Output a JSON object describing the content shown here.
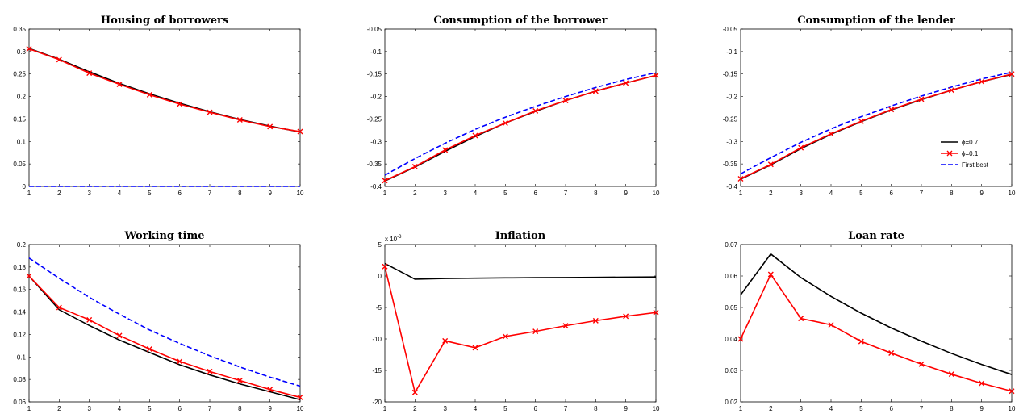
{
  "chart_data": [
    {
      "type": "line",
      "title": "Housing of borrowers",
      "x": [
        1,
        2,
        3,
        4,
        5,
        6,
        7,
        8,
        9,
        10
      ],
      "xlim": [
        1,
        10
      ],
      "ylim": [
        0,
        0.35
      ],
      "yticks": [
        0,
        0.05,
        0.1,
        0.15,
        0.2,
        0.25,
        0.3,
        0.35
      ],
      "ytick_labels": [
        "0",
        "0.05",
        "0.1",
        "0.15",
        "0.2",
        "0.25",
        "0.3",
        "0.35"
      ],
      "series": [
        {
          "name": "ϕ=0.7",
          "color": "#000000",
          "style": "solid",
          "marker": "none",
          "values": [
            0.307,
            0.283,
            0.255,
            0.229,
            0.206,
            0.185,
            0.166,
            0.149,
            0.134,
            0.121
          ]
        },
        {
          "name": "ϕ=0.1",
          "color": "#ff0000",
          "style": "solid",
          "marker": "x",
          "values": [
            0.306,
            0.282,
            0.252,
            0.227,
            0.204,
            0.183,
            0.165,
            0.148,
            0.133,
            0.122
          ]
        },
        {
          "name": "First best",
          "color": "#0000ff",
          "style": "dashed",
          "marker": "none",
          "values": [
            0,
            0,
            0,
            0,
            0,
            0,
            0,
            0,
            0,
            0
          ]
        }
      ]
    },
    {
      "type": "line",
      "title": "Consumption of the borrower",
      "x": [
        1,
        2,
        3,
        4,
        5,
        6,
        7,
        8,
        9,
        10
      ],
      "xlim": [
        1,
        10
      ],
      "ylim": [
        -0.4,
        -0.05
      ],
      "yticks": [
        -0.4,
        -0.35,
        -0.3,
        -0.25,
        -0.2,
        -0.15,
        -0.1,
        -0.05
      ],
      "ytick_labels": [
        "-0.4",
        "-0.35",
        "-0.3",
        "-0.25",
        "-0.2",
        "-0.15",
        "-0.1",
        "-0.05"
      ],
      "series": [
        {
          "name": "ϕ=0.7",
          "color": "#000000",
          "style": "solid",
          "marker": "none",
          "values": [
            -0.388,
            -0.357,
            -0.322,
            -0.289,
            -0.259,
            -0.233,
            -0.209,
            -0.188,
            -0.17,
            -0.153
          ]
        },
        {
          "name": "ϕ=0.1",
          "color": "#ff0000",
          "style": "solid",
          "marker": "x",
          "values": [
            -0.387,
            -0.356,
            -0.319,
            -0.287,
            -0.259,
            -0.232,
            -0.209,
            -0.188,
            -0.17,
            -0.153
          ]
        },
        {
          "name": "First best",
          "color": "#0000ff",
          "style": "dashed",
          "marker": "none",
          "values": [
            -0.375,
            -0.338,
            -0.304,
            -0.273,
            -0.246,
            -0.222,
            -0.2,
            -0.18,
            -0.162,
            -0.147
          ]
        }
      ]
    },
    {
      "type": "line",
      "title": "Consumption of the lender",
      "x": [
        1,
        2,
        3,
        4,
        5,
        6,
        7,
        8,
        9,
        10
      ],
      "xlim": [
        1,
        10
      ],
      "ylim": [
        -0.4,
        -0.05
      ],
      "yticks": [
        -0.4,
        -0.35,
        -0.3,
        -0.25,
        -0.2,
        -0.15,
        -0.1,
        -0.05
      ],
      "ytick_labels": [
        "-0.4",
        "-0.35",
        "-0.3",
        "-0.25",
        "-0.2",
        "-0.15",
        "-0.1",
        "-0.05"
      ],
      "legend": {
        "position": "right",
        "entries": [
          "ϕ=0.7",
          "ϕ=0.1",
          "First best"
        ]
      },
      "series": [
        {
          "name": "ϕ=0.7",
          "color": "#000000",
          "style": "solid",
          "marker": "none",
          "values": [
            -0.384,
            -0.352,
            -0.316,
            -0.284,
            -0.256,
            -0.23,
            -0.207,
            -0.186,
            -0.167,
            -0.151
          ]
        },
        {
          "name": "ϕ=0.1",
          "color": "#ff0000",
          "style": "solid",
          "marker": "x",
          "values": [
            -0.383,
            -0.351,
            -0.314,
            -0.283,
            -0.255,
            -0.229,
            -0.206,
            -0.186,
            -0.167,
            -0.15
          ]
        },
        {
          "name": "First best",
          "color": "#0000ff",
          "style": "dashed",
          "marker": "none",
          "values": [
            -0.372,
            -0.336,
            -0.302,
            -0.272,
            -0.245,
            -0.221,
            -0.199,
            -0.179,
            -0.161,
            -0.146
          ]
        }
      ]
    },
    {
      "type": "line",
      "title": "Working time",
      "x": [
        1,
        2,
        3,
        4,
        5,
        6,
        7,
        8,
        9,
        10
      ],
      "xlim": [
        1,
        10
      ],
      "ylim": [
        0.06,
        0.2
      ],
      "yticks": [
        0.06,
        0.08,
        0.1,
        0.12,
        0.14,
        0.16,
        0.18,
        0.2
      ],
      "ytick_labels": [
        "0.06",
        "0.08",
        "0.1",
        "0.12",
        "0.14",
        "0.16",
        "0.18",
        "0.2"
      ],
      "series": [
        {
          "name": "ϕ=0.7",
          "color": "#000000",
          "style": "solid",
          "marker": "none",
          "values": [
            0.172,
            0.142,
            0.128,
            0.115,
            0.104,
            0.093,
            0.084,
            0.076,
            0.069,
            0.062
          ]
        },
        {
          "name": "ϕ=0.1",
          "color": "#ff0000",
          "style": "solid",
          "marker": "x",
          "values": [
            0.172,
            0.144,
            0.133,
            0.119,
            0.107,
            0.096,
            0.087,
            0.079,
            0.071,
            0.064
          ]
        },
        {
          "name": "First best",
          "color": "#0000ff",
          "style": "dashed",
          "marker": "none",
          "values": [
            0.188,
            0.17,
            0.153,
            0.138,
            0.124,
            0.112,
            0.101,
            0.091,
            0.082,
            0.074
          ]
        }
      ]
    },
    {
      "type": "line",
      "title": "Inflation",
      "axis_multiplier": "x 10",
      "axis_multiplier_exp": "-3",
      "x": [
        1,
        2,
        3,
        4,
        5,
        6,
        7,
        8,
        9,
        10
      ],
      "xlim": [
        1,
        10
      ],
      "ylim": [
        -20,
        5
      ],
      "yticks": [
        -20,
        -15,
        -10,
        -5,
        0,
        5
      ],
      "ytick_labels": [
        "-20",
        "-15",
        "-10",
        "-5",
        "0",
        "5"
      ],
      "series": [
        {
          "name": "ϕ=0.7",
          "color": "#000000",
          "style": "solid",
          "marker": "none",
          "values": [
            2,
            -0.5,
            -0.4,
            -0.35,
            -0.3,
            -0.27,
            -0.24,
            -0.21,
            -0.18,
            -0.15
          ]
        },
        {
          "name": "ϕ=0.1",
          "color": "#ff0000",
          "style": "solid",
          "marker": "x",
          "values": [
            1.5,
            -18.5,
            -10.3,
            -11.4,
            -9.6,
            -8.8,
            -7.9,
            -7.1,
            -6.4,
            -5.8
          ]
        }
      ]
    },
    {
      "type": "line",
      "title": "Loan rate",
      "x": [
        1,
        2,
        3,
        4,
        5,
        6,
        7,
        8,
        9,
        10
      ],
      "xlim": [
        1,
        10
      ],
      "ylim": [
        0.02,
        0.07
      ],
      "yticks": [
        0.02,
        0.03,
        0.04,
        0.05,
        0.06,
        0.07
      ],
      "ytick_labels": [
        "0.02",
        "0.03",
        "0.04",
        "0.05",
        "0.06",
        "0.07"
      ],
      "series": [
        {
          "name": "ϕ=0.7",
          "color": "#000000",
          "style": "solid",
          "marker": "none",
          "values": [
            0.054,
            0.067,
            0.0595,
            0.0535,
            0.0482,
            0.0435,
            0.0393,
            0.0354,
            0.0319,
            0.0287
          ]
        },
        {
          "name": "ϕ=0.1",
          "color": "#ff0000",
          "style": "solid",
          "marker": "x",
          "values": [
            0.04,
            0.0605,
            0.0465,
            0.0445,
            0.0392,
            0.0355,
            0.032,
            0.0288,
            0.0259,
            0.0234
          ]
        }
      ]
    }
  ]
}
